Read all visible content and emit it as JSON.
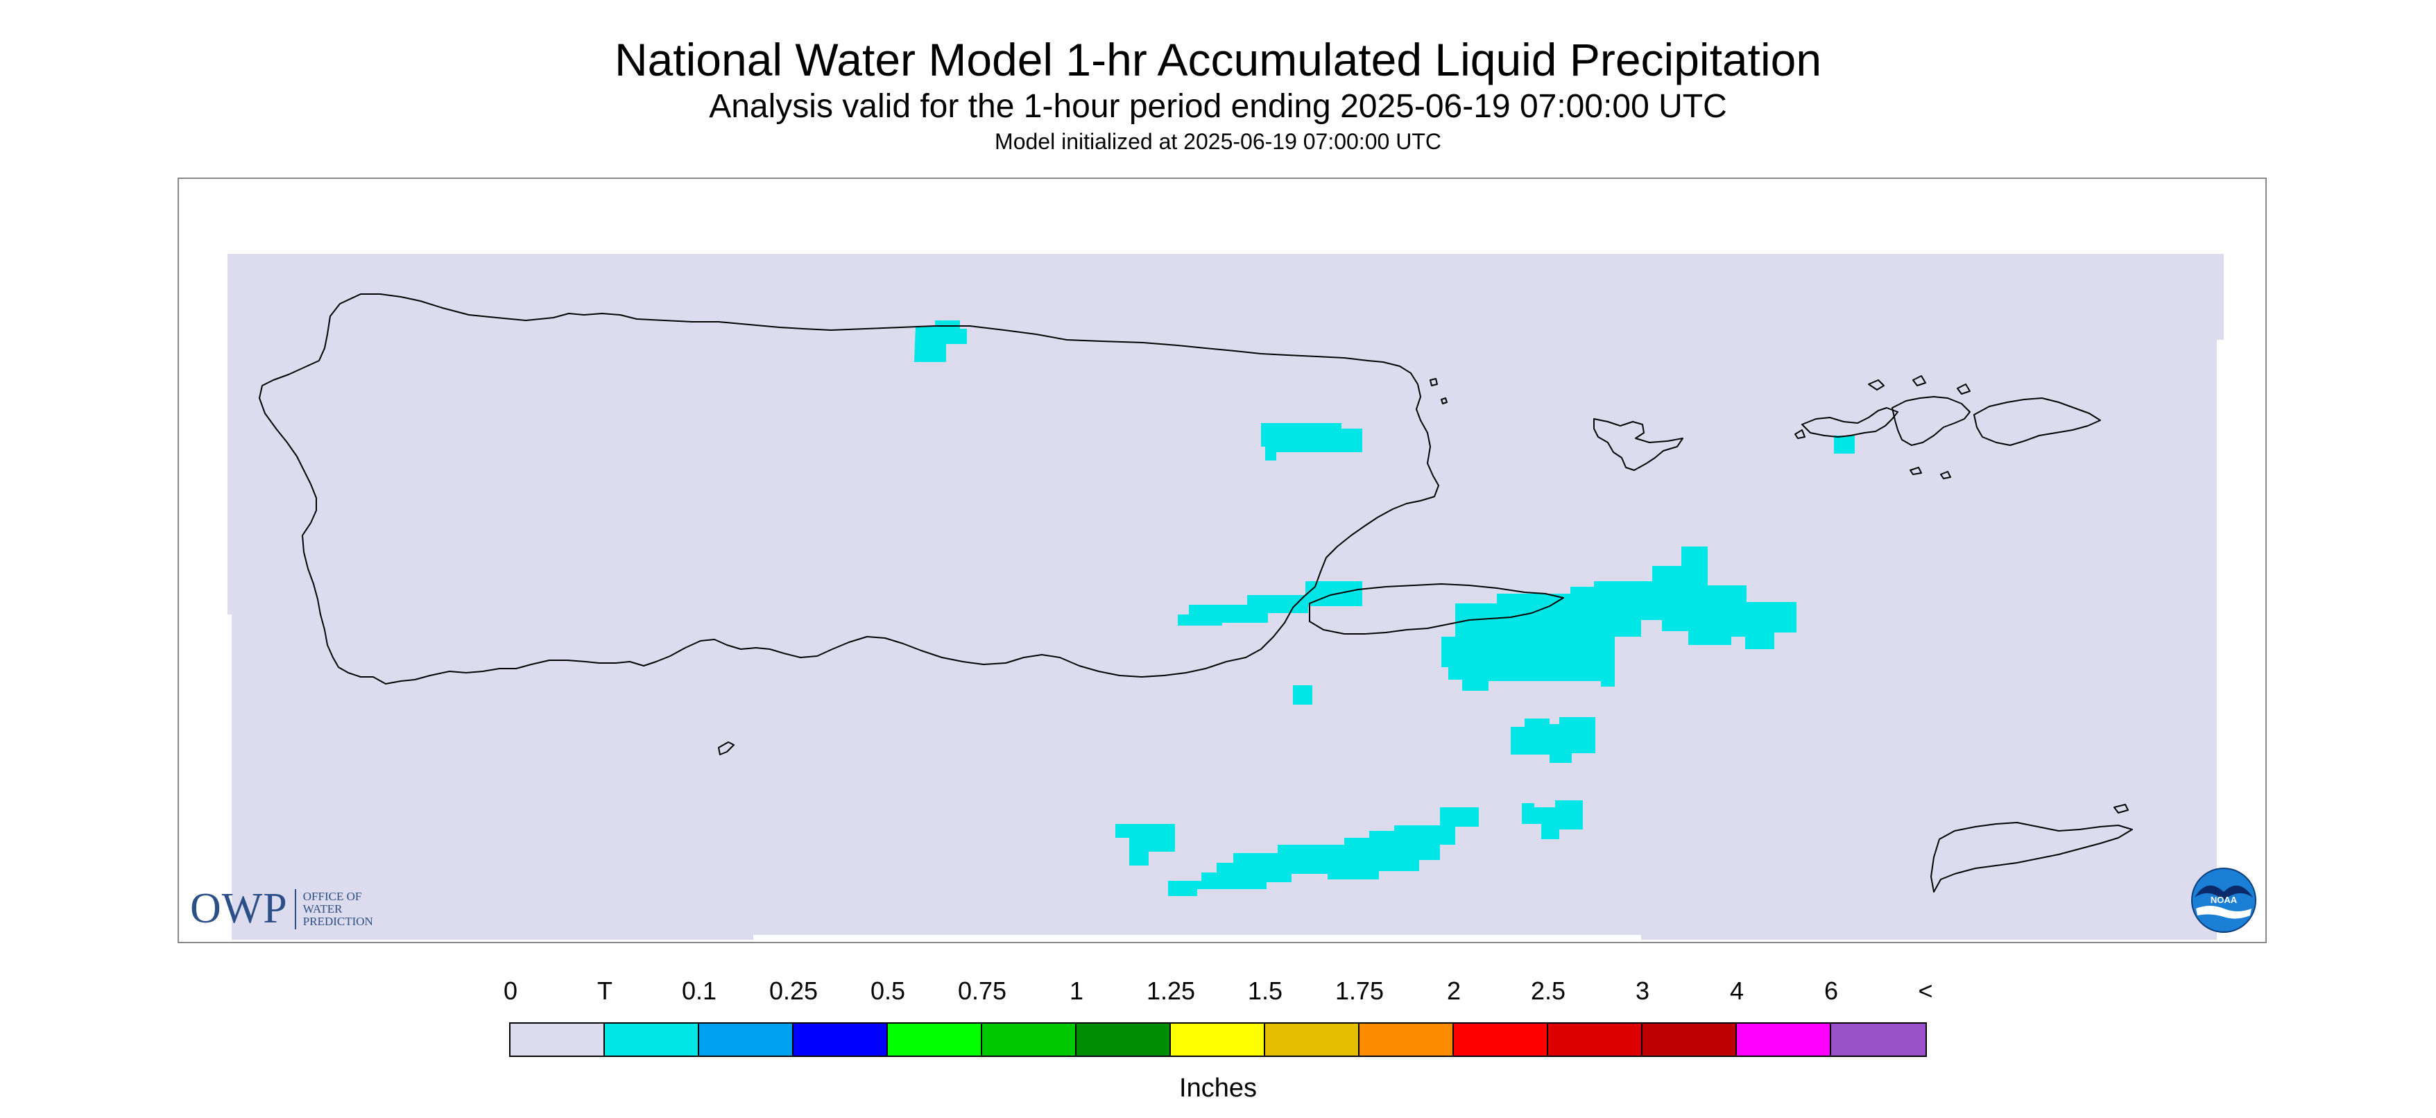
{
  "title": "National Water Model 1-hr Accumulated Liquid Precipitation",
  "subtitle": "Analysis valid for the 1-hour period ending 2025-06-19 07:00:00 UTC",
  "init_line": "Model initialized at 2025-06-19 07:00:00 UTC",
  "logos": {
    "owp_letters": "OWP",
    "owp_words": [
      "OFFICE OF",
      "WATER",
      "PREDICTION"
    ],
    "noaa": "NOAA"
  },
  "colors": {
    "background_field": "#dcdcee",
    "trace": "#00e6e6",
    "coastline": "#000000"
  },
  "legend": {
    "labels": [
      "0",
      "T",
      "0.1",
      "0.25",
      "0.5",
      "0.75",
      "1",
      "1.25",
      "1.5",
      "1.75",
      "2",
      "2.5",
      "3",
      "4",
      "6",
      "<"
    ],
    "colors": [
      "#dcdcee",
      "#00e6e6",
      "#00a0f0",
      "#0000ff",
      "#00ff00",
      "#00c800",
      "#008c00",
      "#ffff00",
      "#e6be00",
      "#ff8c00",
      "#ff0000",
      "#dc0000",
      "#be0000",
      "#ff00ff",
      "#9a50c8"
    ],
    "units": "Inches"
  }
}
